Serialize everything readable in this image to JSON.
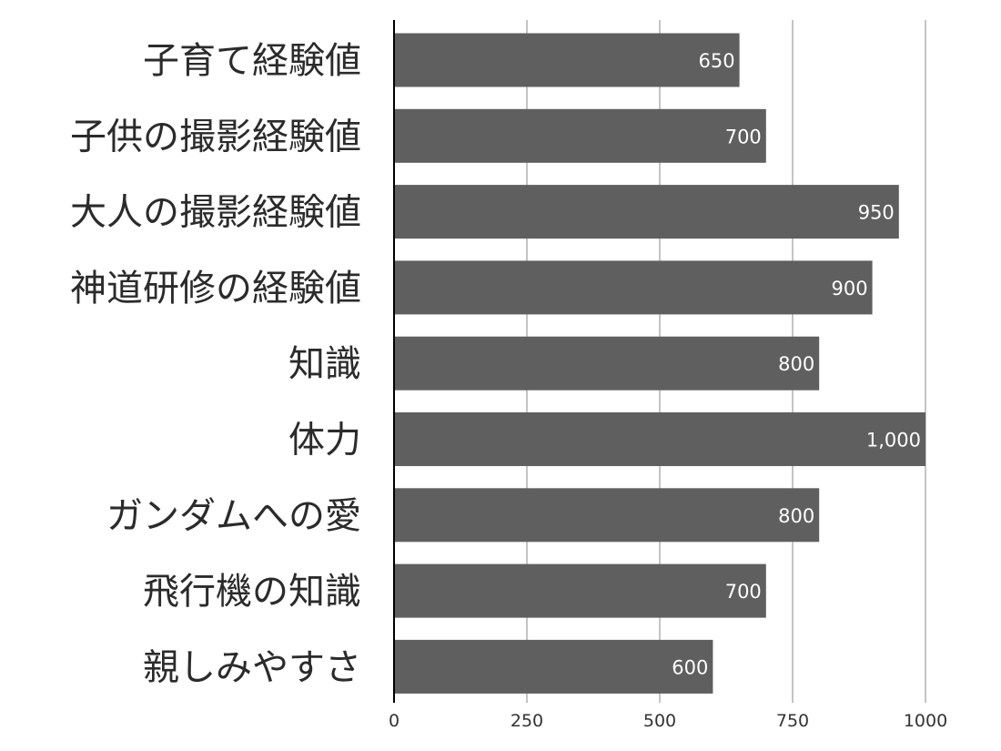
{
  "chart_data": {
    "type": "bar",
    "orientation": "horizontal",
    "categories": [
      "子育て経験値",
      "子供の撮影経験値",
      "大人の撮影経験値",
      "神道研修の経験値",
      "知識",
      "体力",
      "ガンダムへの愛",
      "飛行機の知識",
      "親しみやすさ"
    ],
    "values": [
      650,
      700,
      950,
      900,
      800,
      1000,
      800,
      700,
      600
    ],
    "data_labels": [
      "650",
      "700",
      "950",
      "900",
      "800",
      "1,000",
      "800",
      "700",
      "600"
    ],
    "title": "",
    "xlabel": "",
    "ylabel": "",
    "xlim": [
      0,
      1000
    ],
    "ticks": [
      0,
      250,
      500,
      750,
      1000
    ],
    "tick_labels": [
      "0",
      "250",
      "500",
      "750",
      "1000"
    ],
    "grid": true,
    "bar_color": "#5f5f5f",
    "label_color": "#ffffff",
    "grid_color": "#c4c4c4",
    "axis_color": "#000000",
    "text_color": "#2b2b2b"
  }
}
